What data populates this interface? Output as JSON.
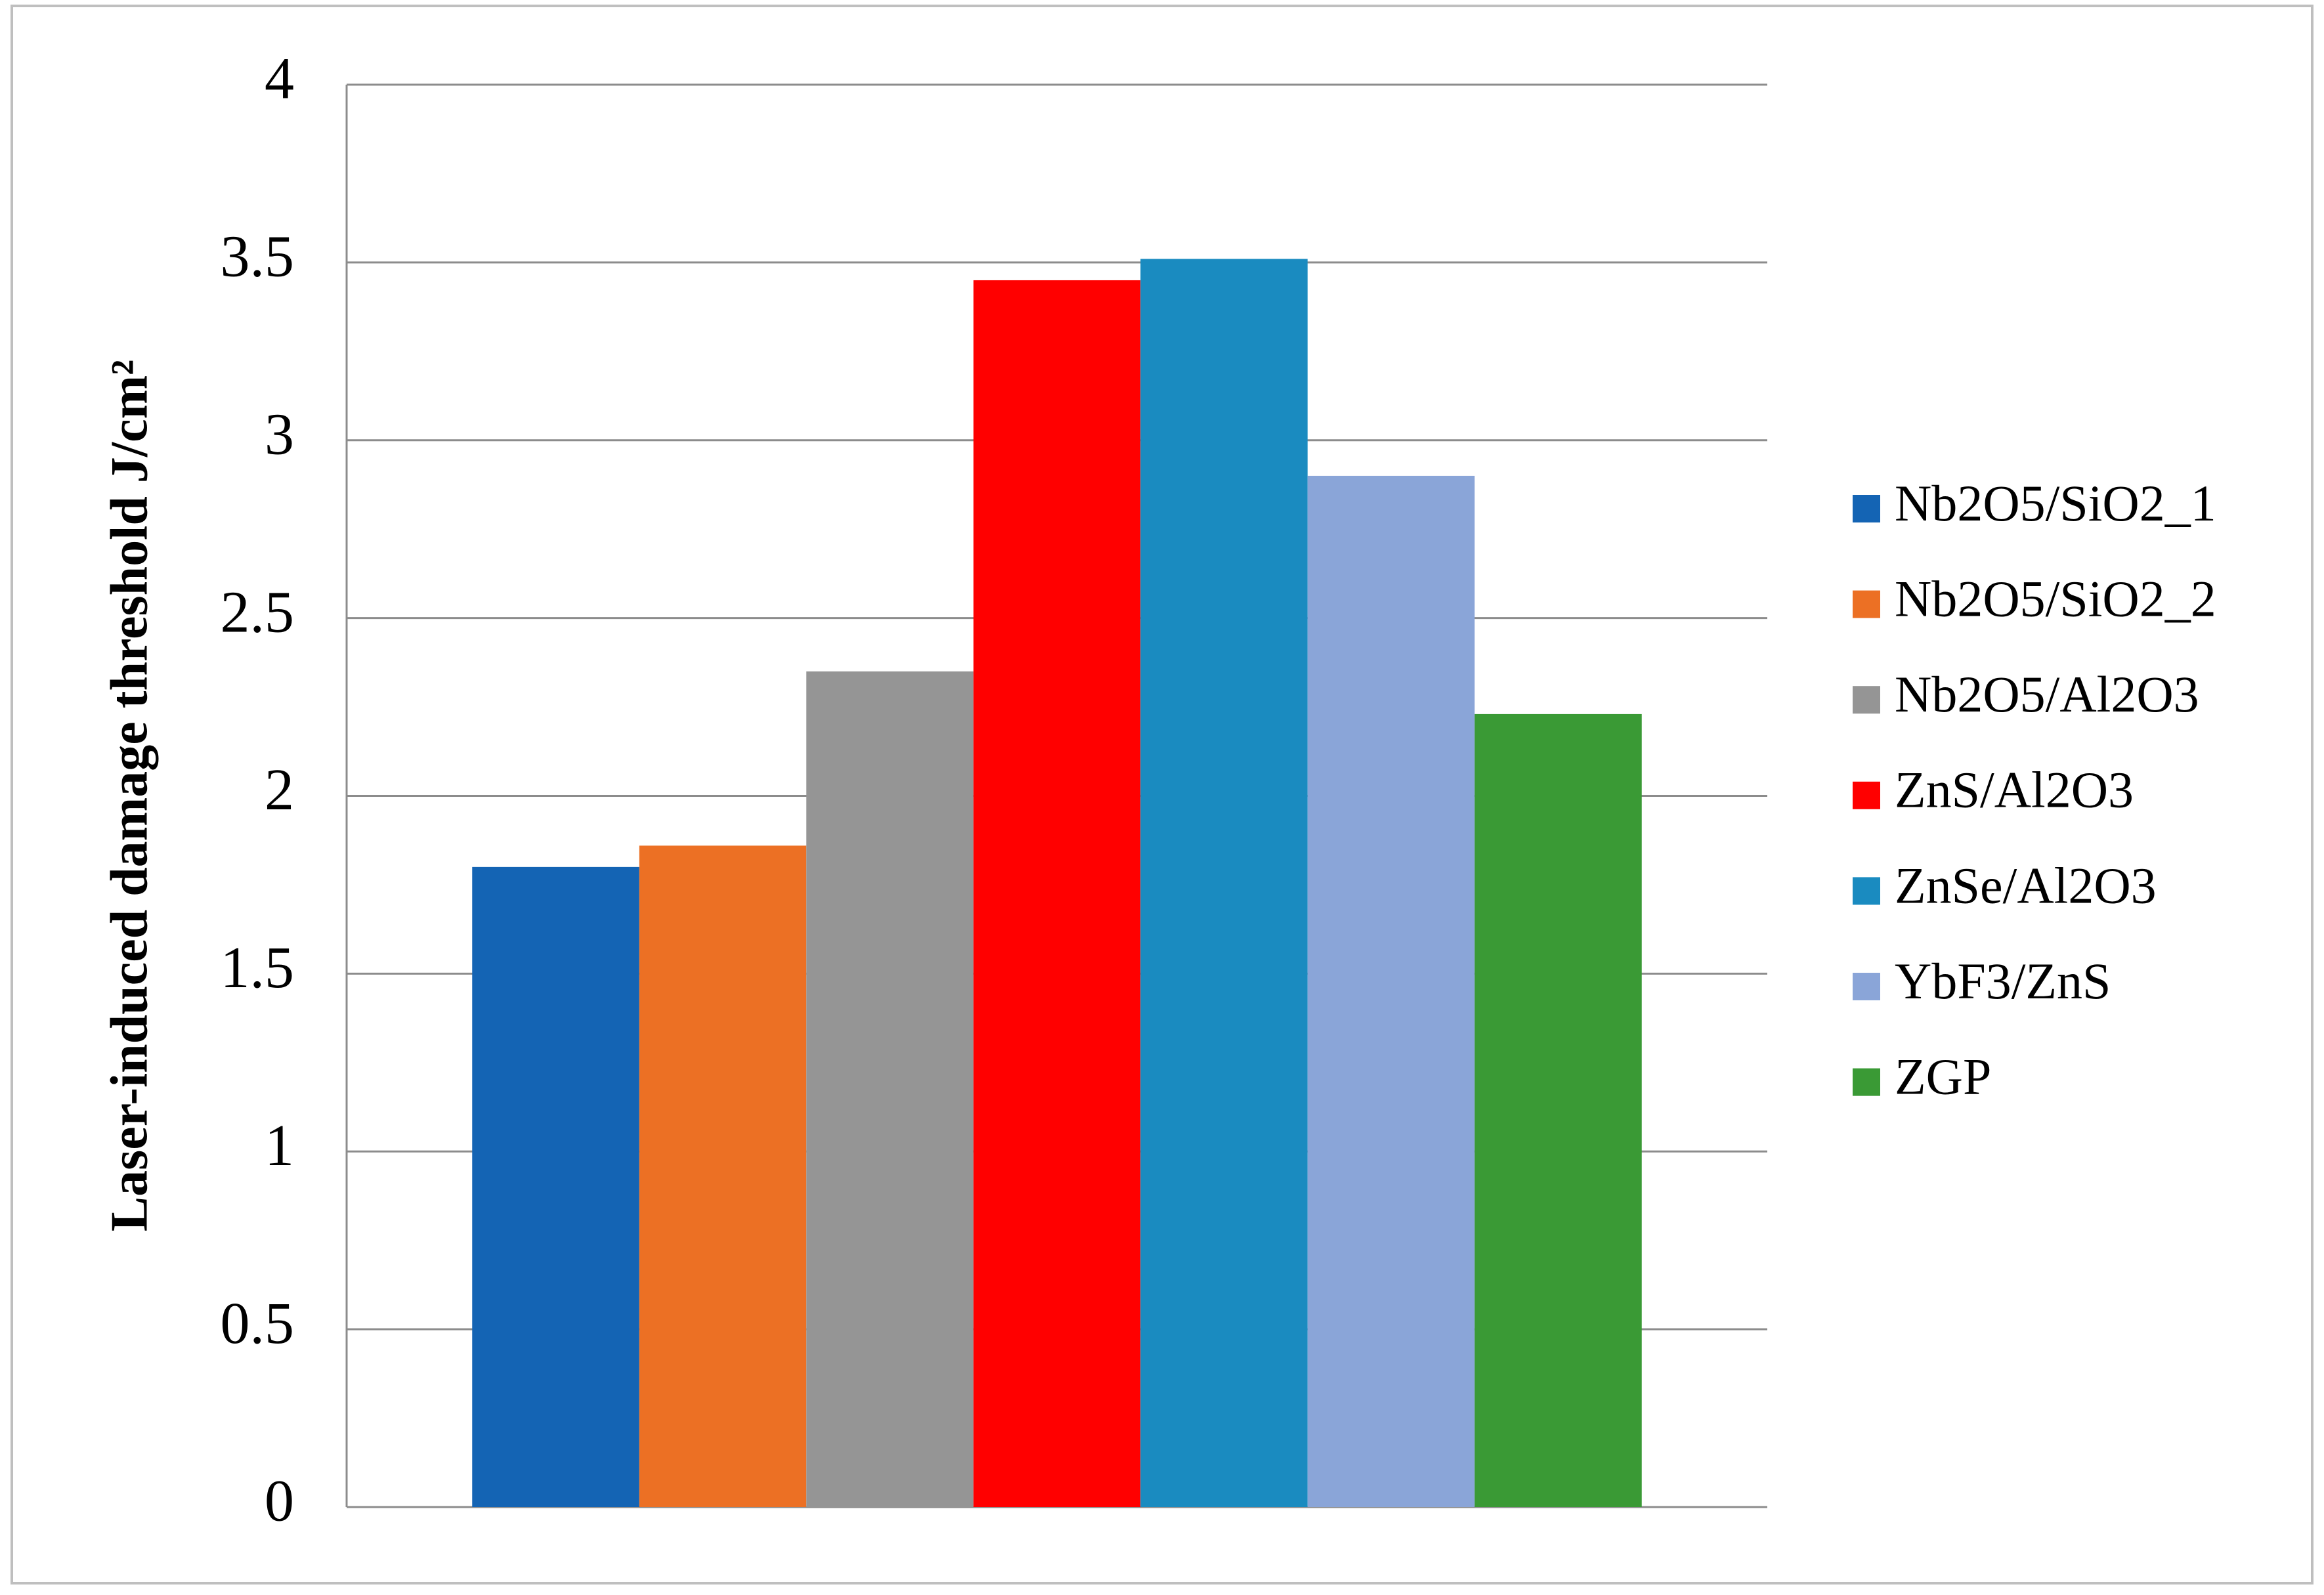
{
  "chart_data": {
    "type": "bar",
    "y_label": "Laser-induced damage threshold J/cm²",
    "series": [
      {
        "name": "Nb2O5/SiO2_1",
        "color": "#1464b4",
        "values": [
          1.8
        ]
      },
      {
        "name": "Nb2O5/SiO2_2",
        "color": "#ec7024",
        "values": [
          1.86
        ]
      },
      {
        "name": "Nb2O5/Al2O3",
        "color": "#959595",
        "values": [
          2.35
        ]
      },
      {
        "name": "ZnS/Al2O3",
        "color": "#ff0000",
        "values": [
          3.45
        ]
      },
      {
        "name": "ZnSe/Al2O3",
        "color": "#1a8bc0",
        "values": [
          3.51
        ]
      },
      {
        "name": "YbF3/ZnS",
        "color": "#8aa5d8",
        "values": [
          2.9
        ]
      },
      {
        "name": "ZGP",
        "color": "#3a9a35",
        "values": [
          2.23
        ]
      }
    ],
    "ylim": [
      0,
      4
    ],
    "yticks": [
      0,
      0.5,
      1,
      1.5,
      2,
      2.5,
      3,
      3.5,
      4
    ],
    "grid": true,
    "legend": "right"
  }
}
